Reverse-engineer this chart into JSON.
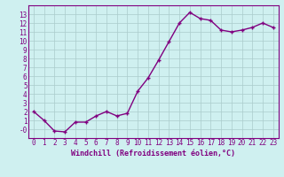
{
  "x": [
    0,
    1,
    2,
    3,
    4,
    5,
    6,
    7,
    8,
    9,
    10,
    11,
    12,
    13,
    14,
    15,
    16,
    17,
    18,
    19,
    20,
    21,
    22,
    23
  ],
  "y": [
    2,
    1,
    -0.2,
    -0.3,
    0.8,
    0.8,
    1.5,
    2,
    1.5,
    1.8,
    4.3,
    5.8,
    7.8,
    9.9,
    12.0,
    13.2,
    12.5,
    12.3,
    11.2,
    11.0,
    11.2,
    11.5,
    12.0,
    11.5
  ],
  "line_color": "#800080",
  "marker": "+",
  "marker_size": 3,
  "bg_color": "#cff0f0",
  "grid_color": "#aacccc",
  "xlabel": "Windchill (Refroidissement éolien,°C)",
  "xlabel_color": "#800080",
  "tick_color": "#800080",
  "spine_color": "#800080",
  "ylim": [
    -1,
    14
  ],
  "xlim": [
    -0.5,
    23.5
  ],
  "yticks": [
    0,
    1,
    2,
    3,
    4,
    5,
    6,
    7,
    8,
    9,
    10,
    11,
    12,
    13
  ],
  "ytick_labels": [
    "-0",
    "1",
    "2",
    "3",
    "4",
    "5",
    "6",
    "7",
    "8",
    "9",
    "10",
    "11",
    "12",
    "13"
  ],
  "xticks": [
    0,
    1,
    2,
    3,
    4,
    5,
    6,
    7,
    8,
    9,
    10,
    11,
    12,
    13,
    14,
    15,
    16,
    17,
    18,
    19,
    20,
    21,
    22,
    23
  ],
  "tick_fontsize": 5.5,
  "xlabel_fontsize": 6.0,
  "linewidth": 1.0
}
